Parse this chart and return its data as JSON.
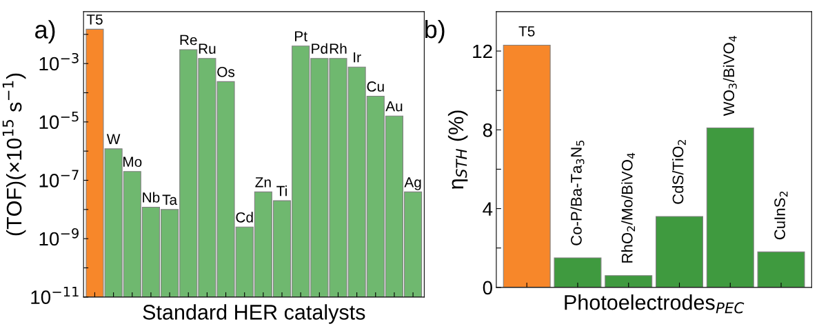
{
  "chart_data": [
    {
      "type": "bar",
      "xlabel": "Standard HER catalysts",
      "ylabel": "(TOF)(×10$^{15}$ s$^{−1}$)",
      "annotations": [
        "a)"
      ],
      "log": "y",
      "categories": [
        "T5",
        "W",
        "Mo",
        "Nb",
        "Ta",
        "Re",
        "Ru",
        "Os",
        "Cd",
        "Zn",
        "Ti",
        "Pt",
        "Pd",
        "Rh",
        "Ir",
        "Cu",
        "Au",
        "Ag"
      ],
      "values": [
        0.015,
        1.2e-06,
        2e-07,
        1.2e-08,
        1e-08,
        0.003,
        0.0015,
        0.00024,
        2.5e-09,
        4e-08,
        2e-08,
        0.004,
        0.0015,
        0.0015,
        0.00076,
        7.6e-05,
        1.6e-05,
        4e-08
      ],
      "colors": [
        "#f7872a",
        "#6fb86f",
        "#6fb86f",
        "#6fb86f",
        "#6fb86f",
        "#6fb86f",
        "#6fb86f",
        "#6fb86f",
        "#6fb86f",
        "#6fb86f",
        "#6fb86f",
        "#6fb86f",
        "#6fb86f",
        "#6fb86f",
        "#6fb86f",
        "#6fb86f",
        "#6fb86f",
        "#6fb86f"
      ],
      "ylim": [
        1e-11,
        0.06
      ],
      "yticks": [
        {
          "value": 1e-11,
          "label": "10$^{−11}$"
        },
        {
          "value": 1e-10,
          "label": null
        },
        {
          "value": 1e-09,
          "label": "10$^{−9}$"
        },
        {
          "value": 1e-08,
          "label": null
        },
        {
          "value": 1e-07,
          "label": "10$^{−7}$"
        },
        {
          "value": 1e-06,
          "label": null
        },
        {
          "value": 1e-05,
          "label": "10$^{−5}$"
        },
        {
          "value": 0.0001,
          "label": null
        },
        {
          "value": 0.001,
          "label": "10$^{−3}$"
        },
        {
          "value": 0.01,
          "label": null
        }
      ],
      "grid": false,
      "legend": false
    },
    {
      "type": "bar",
      "xlabel": "Photoelectrodes$_{PEC}$",
      "ylabel": "η$_{STH}$ (%)",
      "annotations": [
        "b)"
      ],
      "categories": [
        "T5",
        "Co-P/Ba-Ta$_{3}$N$_{5}$",
        "RhO$_{2}$/Mo/BiVO$_{4}$",
        "CdS/TiO$_{2}$",
        "WO$_{3}$/BiVO$_{4}$",
        "CuInS$_{2}$"
      ],
      "values": [
        12.3,
        1.5,
        0.6,
        3.6,
        8.1,
        1.8
      ],
      "colors": [
        "#f7872a",
        "#3f9a3f",
        "#3f9a3f",
        "#3f9a3f",
        "#3f9a3f",
        "#3f9a3f"
      ],
      "ylim": [
        0,
        14
      ],
      "yticks": [
        0,
        {
          "value": 2,
          "label": null
        },
        4,
        {
          "value": 6,
          "label": null
        },
        8,
        {
          "value": 10,
          "label": null
        },
        12
      ],
      "grid": false,
      "legend": false
    }
  ]
}
